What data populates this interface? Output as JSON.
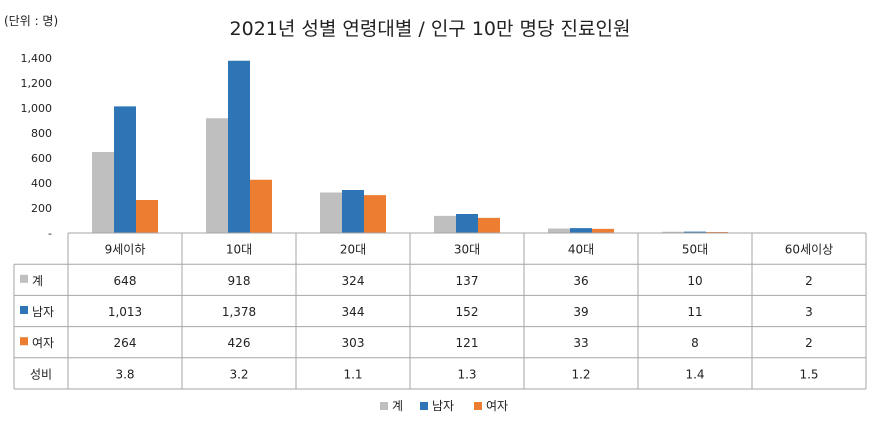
{
  "chart_data": {
    "type": "bar",
    "title": "2021년 성별 연령대별 / 인구 10만 명당 진료인원",
    "unit_label": "(단위 : 명)",
    "categories": [
      "9세이하",
      "10대",
      "20대",
      "30대",
      "40대",
      "50대",
      "60세이상"
    ],
    "y_ticks": [
      "-",
      "200",
      "400",
      "600",
      "800",
      "1,000",
      "1,200",
      "1,400"
    ],
    "ylim": [
      0,
      1400
    ],
    "grid": false,
    "legend_position": "bottom",
    "series": [
      {
        "name": "계",
        "color": "#BFBFBF",
        "values": [
          648,
          918,
          324,
          137,
          36,
          10,
          2
        ],
        "labels": [
          "648",
          "918",
          "324",
          "137",
          "36",
          "10",
          "2"
        ]
      },
      {
        "name": "남자",
        "color": "#2E75B6",
        "values": [
          1013,
          1378,
          344,
          152,
          39,
          11,
          3
        ],
        "labels": [
          "1,013",
          "1,378",
          "344",
          "152",
          "39",
          "11",
          "3"
        ]
      },
      {
        "name": "여자",
        "color": "#ED7D31",
        "values": [
          264,
          426,
          303,
          121,
          33,
          8,
          2
        ],
        "labels": [
          "264",
          "426",
          "303",
          "121",
          "33",
          "8",
          "2"
        ]
      }
    ],
    "extra_rows": [
      {
        "name": "성비",
        "labels": [
          "3.8",
          "3.2",
          "1.1",
          "1.3",
          "1.2",
          "1.4",
          "1.5"
        ]
      }
    ]
  }
}
